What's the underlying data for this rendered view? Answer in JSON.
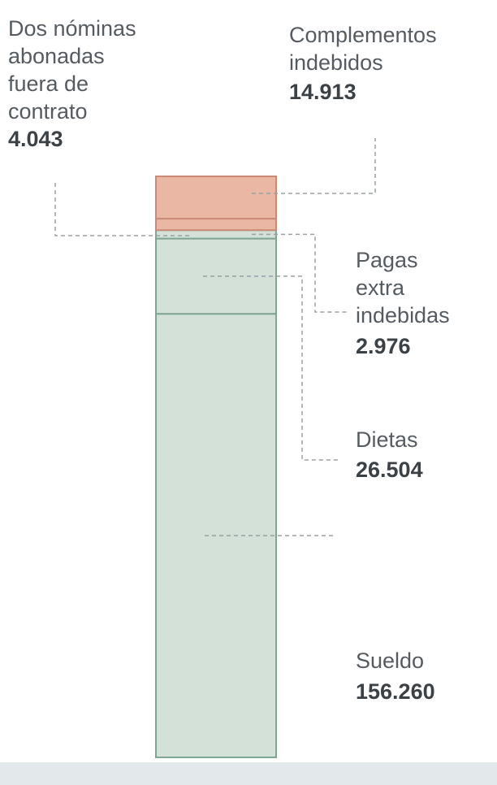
{
  "chart_data": {
    "type": "bar",
    "stacked": true,
    "title": "",
    "xlabel": "",
    "ylabel": "",
    "segments": [
      {
        "name_lines": [
          "Sueldo"
        ],
        "value_label": "156.260",
        "value": 156260,
        "color": "#d3e1d9"
      },
      {
        "name_lines": [
          "Dietas"
        ],
        "value_label": "26.504",
        "value": 26504,
        "color": "#d3e1d9"
      },
      {
        "name_lines": [
          "Pagas",
          "extra",
          "indebidas"
        ],
        "value_label": "2.976",
        "value": 2976,
        "color": "#d3e1d9"
      },
      {
        "name_lines": [
          "Dos nóminas",
          "abonadas",
          "fuera  de",
          "contrato"
        ],
        "value_label": "4.043",
        "value": 4043,
        "color": "#e9b7a4"
      },
      {
        "name_lines": [
          "Complementos",
          "indebidos"
        ],
        "value_label": "14.913",
        "value": 14913,
        "color": "#e9b7a4"
      }
    ],
    "colors": {
      "green_fill": "#d3e1d9",
      "green_edge": "#7fa593",
      "red_fill": "#e9b7a4",
      "red_edge": "#c98a78",
      "floor": "#e3e8ea"
    }
  }
}
